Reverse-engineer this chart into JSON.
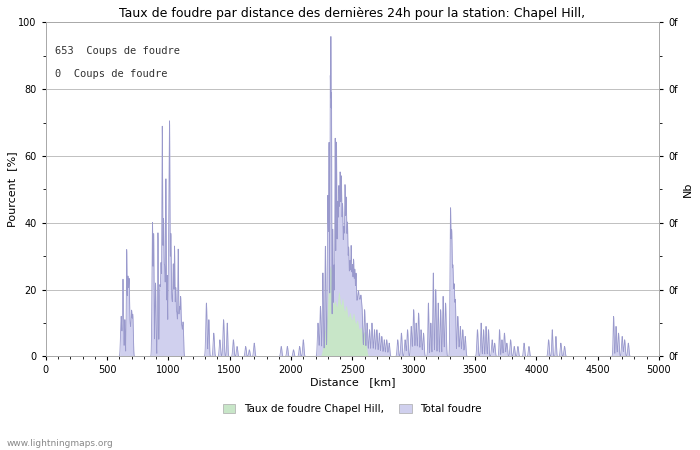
{
  "title": "Taux de foudre par distance des dernières 24h pour la station: Chapel Hill,",
  "xlabel": "Distance   [km]",
  "ylabel_left": "Pourcent  [%]",
  "ylabel_right": "Nb",
  "annotation_line1": "653  Coups de foudre",
  "annotation_line2": "0  Coups de foudre",
  "legend_label1": "Taux de foudre Chapel Hill,",
  "legend_label2": "Total foudre",
  "watermark": "www.lightningmaps.org",
  "xlim": [
    0,
    5000
  ],
  "ylim": [
    0,
    100
  ],
  "background_color": "#ffffff",
  "plot_bg_color": "#ffffff",
  "grid_color": "#c0c0c0",
  "line_color": "#9999cc",
  "fill_total_color": "#d0d0ee",
  "fill_local_color": "#c8e6c8",
  "line_color_local": "#99bb99",
  "xticks": [
    0,
    500,
    1000,
    1500,
    2000,
    2500,
    3000,
    3500,
    4000,
    4500,
    5000
  ],
  "yticks_left": [
    0,
    20,
    40,
    60,
    80,
    100
  ],
  "yticks_right": [
    0,
    20,
    40,
    60,
    80,
    100
  ],
  "right_tick_labels": [
    "0f",
    "0f",
    "0f",
    "0f",
    "0f",
    "0f"
  ]
}
